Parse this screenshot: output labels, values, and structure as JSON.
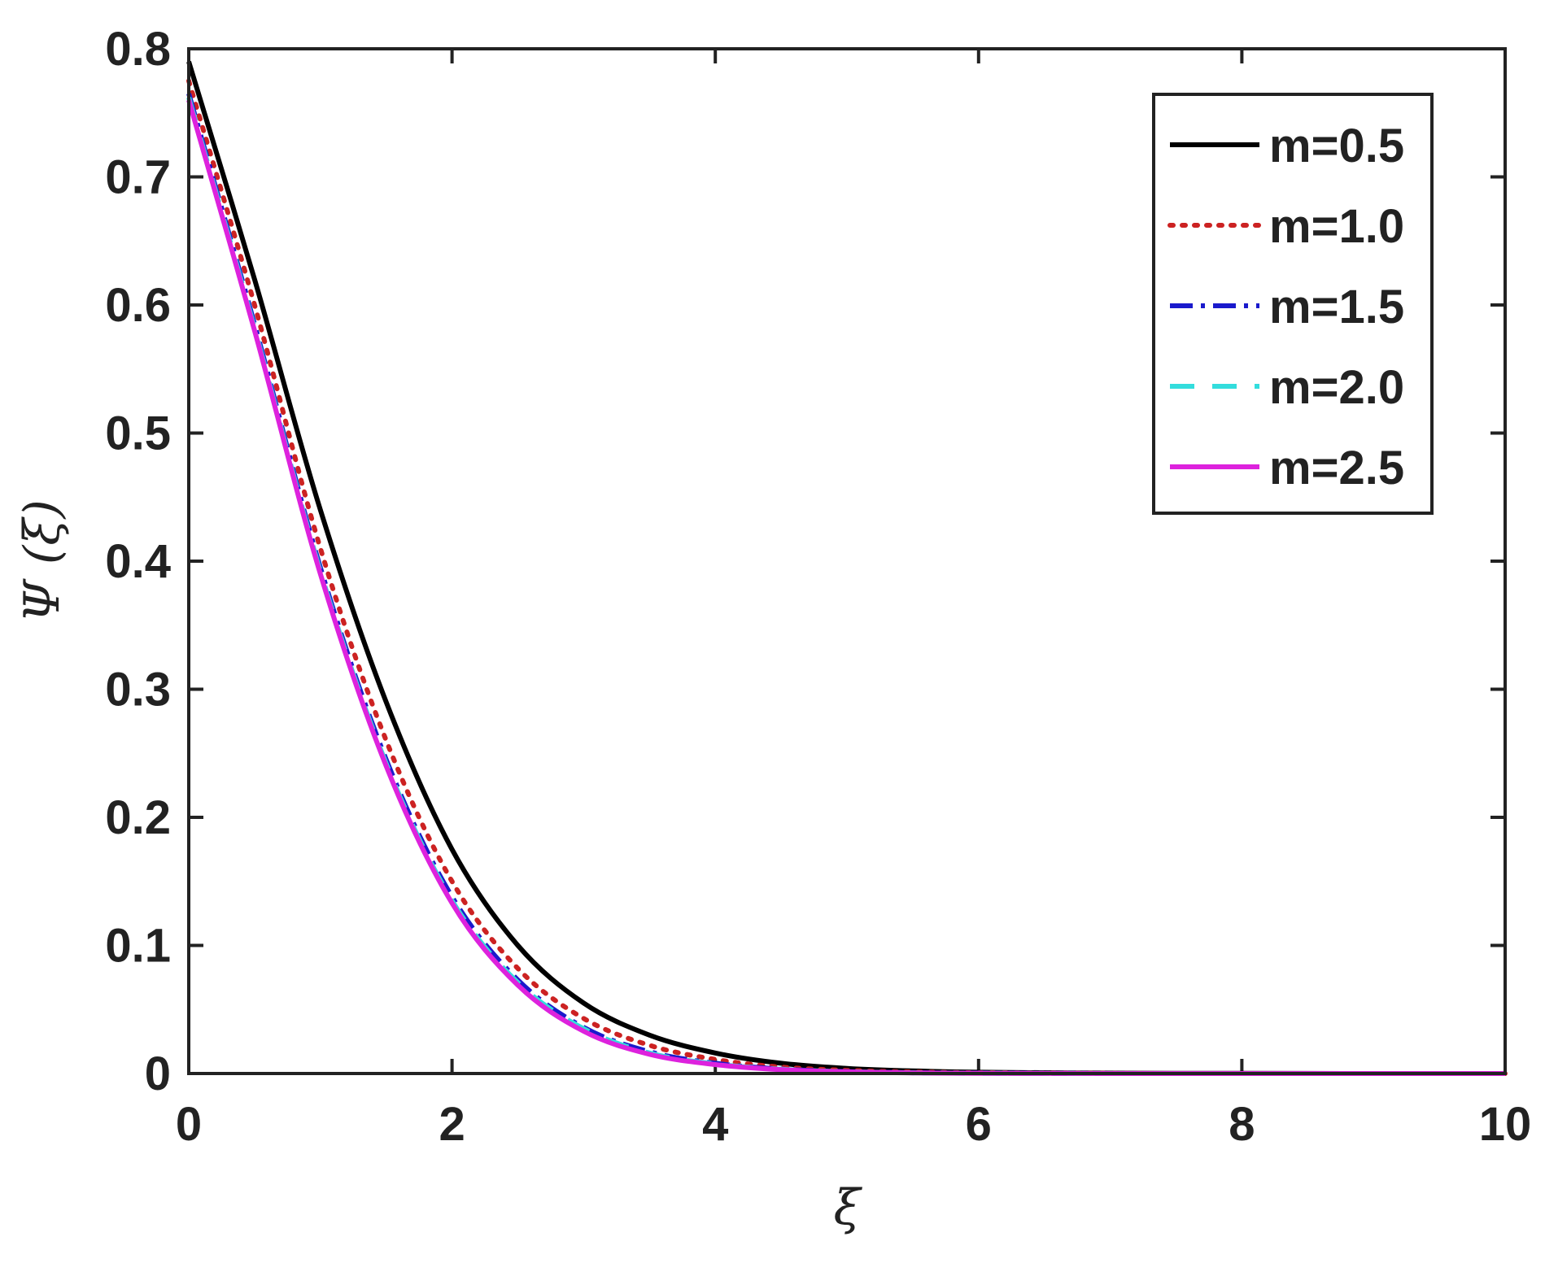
{
  "chart_data": {
    "type": "line",
    "title": "",
    "xlabel": "ξ",
    "ylabel": "Ψ (ξ)",
    "xlim": [
      0,
      10
    ],
    "ylim": [
      0,
      0.8
    ],
    "xticks": [
      0,
      2,
      4,
      6,
      8,
      10
    ],
    "xtick_labels": [
      "0",
      "2",
      "4",
      "6",
      "8",
      "10"
    ],
    "yticks": [
      0,
      0.1,
      0.2,
      0.3,
      0.4,
      0.5,
      0.6,
      0.7,
      0.8
    ],
    "ytick_labels": [
      "0",
      "0.1",
      "0.2",
      "0.3",
      "0.4",
      "0.5",
      "0.6",
      "0.7",
      "0.8"
    ],
    "grid": false,
    "legend_position": "top-right",
    "x": [
      0,
      0.5,
      1,
      1.5,
      2,
      2.5,
      3,
      3.5,
      4,
      4.5,
      5,
      5.5,
      6,
      7,
      8,
      9,
      10
    ],
    "series": [
      {
        "name": "m=0.5",
        "color": "#000000",
        "style": "solid",
        "values": [
          0.79,
          0.62,
          0.44,
          0.29,
          0.175,
          0.1,
          0.055,
          0.03,
          0.016,
          0.008,
          0.004,
          0.002,
          0.001,
          0.0003,
          0.0001,
          0,
          0
        ]
      },
      {
        "name": "m=1.0",
        "color": "#cc2222",
        "style": "dotted",
        "values": [
          0.775,
          0.6,
          0.41,
          0.26,
          0.15,
          0.082,
          0.043,
          0.022,
          0.011,
          0.005,
          0.0025,
          0.0012,
          0.0006,
          0.0001,
          0,
          0,
          0
        ]
      },
      {
        "name": "m=1.5",
        "color": "#1a1acc",
        "style": "dashdot",
        "values": [
          0.765,
          0.585,
          0.395,
          0.245,
          0.138,
          0.073,
          0.036,
          0.017,
          0.008,
          0.0035,
          0.0015,
          0.0006,
          0.0003,
          0,
          0,
          0,
          0
        ]
      },
      {
        "name": "m=2.0",
        "color": "#33dddd",
        "style": "dashed",
        "values": [
          0.762,
          0.582,
          0.392,
          0.242,
          0.135,
          0.071,
          0.035,
          0.016,
          0.0075,
          0.0033,
          0.0014,
          0.0006,
          0.0002,
          0,
          0,
          0,
          0
        ]
      },
      {
        "name": "m=2.5",
        "color": "#dd22dd",
        "style": "solid",
        "values": [
          0.76,
          0.58,
          0.39,
          0.24,
          0.133,
          0.069,
          0.033,
          0.015,
          0.007,
          0.003,
          0.0013,
          0.0005,
          0.0002,
          0,
          0,
          0,
          0
        ]
      }
    ]
  }
}
